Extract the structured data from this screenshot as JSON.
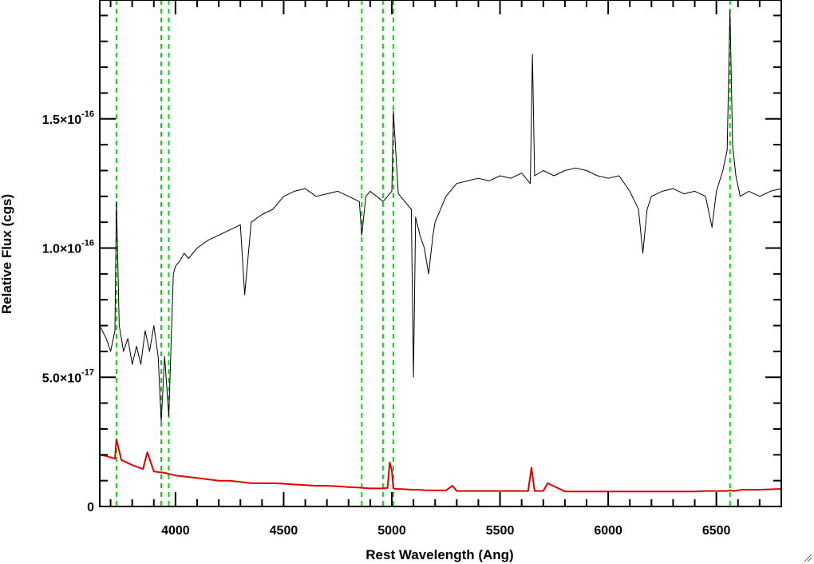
{
  "chart_data": {
    "type": "line",
    "xlabel": "Rest Wavelength (Ang)",
    "ylabel": "Relative Flux (cgs)",
    "xlim": [
      3650,
      6800
    ],
    "ylim": [
      0,
      1.96e-16
    ],
    "x_ticks": [
      {
        "value": 4000,
        "label": "4000"
      },
      {
        "value": 4500,
        "label": "4500"
      },
      {
        "value": 5000,
        "label": "5000"
      },
      {
        "value": 5500,
        "label": "5500"
      },
      {
        "value": 6000,
        "label": "6000"
      },
      {
        "value": 6500,
        "label": "6500"
      }
    ],
    "y_ticks": [
      {
        "value": 0,
        "mantissa": "0",
        "exponent": ""
      },
      {
        "value": 5e-17,
        "mantissa": "5.0×10",
        "exponent": "-17"
      },
      {
        "value": 1e-16,
        "mantissa": "1.0×10",
        "exponent": "-16"
      },
      {
        "value": 1.5e-16,
        "mantissa": "1.5×10",
        "exponent": "-16"
      }
    ],
    "grid": false,
    "reference_lines": [
      3727,
      3934,
      3969,
      4861,
      4959,
      5007,
      6563
    ],
    "series": [
      {
        "role": "spectrum",
        "color": "#000000",
        "x": [
          3650,
          3680,
          3700,
          3720,
          3727,
          3740,
          3760,
          3780,
          3800,
          3820,
          3840,
          3860,
          3880,
          3900,
          3920,
          3934,
          3950,
          3969,
          3990,
          4000,
          4020,
          4040,
          4060,
          4080,
          4100,
          4150,
          4200,
          4250,
          4300,
          4320,
          4350,
          4400,
          4450,
          4500,
          4550,
          4600,
          4650,
          4700,
          4750,
          4800,
          4850,
          4861,
          4880,
          4900,
          4930,
          4959,
          4980,
          5000,
          5007,
          5030,
          5060,
          5090,
          5100,
          5110,
          5130,
          5150,
          5170,
          5190,
          5200,
          5250,
          5300,
          5350,
          5400,
          5450,
          5500,
          5550,
          5600,
          5640,
          5650,
          5660,
          5700,
          5750,
          5800,
          5850,
          5900,
          5950,
          6000,
          6050,
          6100,
          6140,
          6160,
          6180,
          6200,
          6250,
          6300,
          6350,
          6400,
          6450,
          6480,
          6500,
          6530,
          6550,
          6563,
          6575,
          6590,
          6610,
          6650,
          6700,
          6750,
          6800
        ],
        "y": [
          7e-17,
          6.5e-17,
          6e-17,
          6.8e-17,
          1.18e-16,
          7e-17,
          6e-17,
          6.5e-17,
          5.5e-17,
          6.2e-17,
          5.5e-17,
          6.8e-17,
          6e-17,
          7e-17,
          5.8e-17,
          3.3e-17,
          5.8e-17,
          3.5e-17,
          9e-17,
          9.3e-17,
          9.5e-17,
          9.8e-17,
          9.6e-17,
          9.8e-17,
          1e-16,
          1.03e-16,
          1.05e-16,
          1.07e-16,
          1.09e-16,
          8.2e-17,
          1.1e-16,
          1.13e-16,
          1.15e-16,
          1.2e-16,
          1.22e-16,
          1.23e-16,
          1.2e-16,
          1.21e-16,
          1.22e-16,
          1.2e-16,
          1.18e-16,
          1.05e-16,
          1.2e-16,
          1.22e-16,
          1.2e-16,
          1.18e-16,
          1.2e-16,
          1.22e-16,
          1.53e-16,
          1.21e-16,
          1.18e-16,
          1.15e-16,
          5e-17,
          1.12e-16,
          1.05e-16,
          1e-16,
          9e-17,
          1.05e-16,
          1.1e-16,
          1.2e-16,
          1.25e-16,
          1.26e-16,
          1.27e-16,
          1.26e-16,
          1.28e-16,
          1.27e-16,
          1.29e-16,
          1.25e-16,
          1.75e-16,
          1.28e-16,
          1.3e-16,
          1.28e-16,
          1.3e-16,
          1.31e-16,
          1.3e-16,
          1.28e-16,
          1.27e-16,
          1.28e-16,
          1.22e-16,
          1.15e-16,
          9.8e-17,
          1.15e-16,
          1.2e-16,
          1.22e-16,
          1.23e-16,
          1.21e-16,
          1.22e-16,
          1.2e-16,
          1.08e-16,
          1.22e-16,
          1.3e-16,
          1.38e-16,
          1.92e-16,
          1.4e-16,
          1.28e-16,
          1.2e-16,
          1.22e-16,
          1.2e-16,
          1.22e-16,
          1.23e-16
        ]
      },
      {
        "role": "model",
        "color": "#e00000",
        "x": [
          3650,
          3680,
          3700,
          3720,
          3727,
          3750,
          3800,
          3850,
          3870,
          3900,
          3950,
          4000,
          4050,
          4100,
          4150,
          4200,
          4250,
          4300,
          4350,
          4400,
          4450,
          4500,
          4550,
          4600,
          4650,
          4700,
          4750,
          4800,
          4850,
          4900,
          4959,
          4980,
          4990,
          5000,
          5007,
          5020,
          5050,
          5100,
          5120,
          5150,
          5200,
          5250,
          5280,
          5300,
          5400,
          5500,
          5600,
          5630,
          5645,
          5660,
          5700,
          5720,
          5800,
          5900,
          6000,
          6100,
          6200,
          6300,
          6400,
          6450,
          6500,
          6550,
          6563,
          6580,
          6600,
          6620,
          6700,
          6800
        ],
        "y": [
          2e-17,
          1.95e-17,
          1.9e-17,
          1.85e-17,
          2.6e-17,
          1.8e-17,
          1.6e-17,
          1.45e-17,
          2.1e-17,
          1.35e-17,
          1.3e-17,
          1.2e-17,
          1.15e-17,
          1.1e-17,
          1.05e-17,
          1e-17,
          1e-17,
          9.5e-18,
          9e-18,
          9e-18,
          9e-18,
          8.8e-18,
          8.5e-18,
          8.3e-18,
          8e-18,
          8e-18,
          7.8e-18,
          7.5e-18,
          7.3e-18,
          7e-18,
          7e-18,
          7.2e-18,
          1.7e-17,
          1.4e-17,
          7e-18,
          6.8e-18,
          6.7e-18,
          6.5e-18,
          6.5e-18,
          6.3e-18,
          6.2e-18,
          6.2e-18,
          8e-18,
          6e-18,
          6e-18,
          6e-18,
          6e-18,
          6e-18,
          1.5e-17,
          6e-18,
          6e-18,
          9e-18,
          5.8e-18,
          5.8e-18,
          5.8e-18,
          5.8e-18,
          5.8e-18,
          5.8e-18,
          5.8e-18,
          6e-18,
          6e-18,
          6e-18,
          6.2e-18,
          6e-18,
          6.2e-18,
          6.5e-18,
          6.5e-18,
          6.8e-18
        ]
      }
    ]
  }
}
